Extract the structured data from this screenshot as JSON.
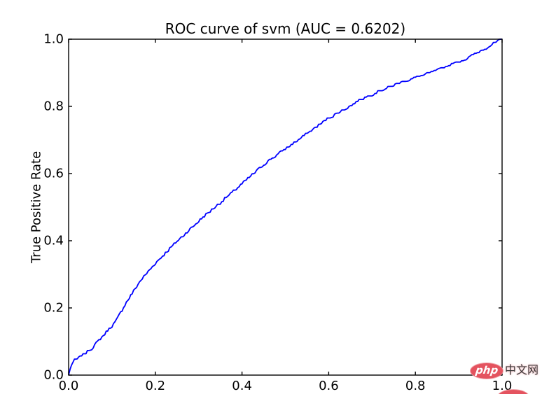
{
  "chart_data": {
    "type": "line",
    "title": "ROC curve of svm (AUC = 0.6202)",
    "xlabel": "",
    "ylabel": "True Positive Rate",
    "xlim": [
      0.0,
      1.0
    ],
    "ylim": [
      0.0,
      1.0
    ],
    "grid": false,
    "legend": "none",
    "x_tick_labels": [
      "0.0",
      "0.2",
      "0.4",
      "0.6",
      "0.8",
      "1.0"
    ],
    "y_tick_labels": [
      "0.0",
      "0.2",
      "0.4",
      "0.6",
      "0.8",
      "1.0"
    ],
    "x_tick_values": [
      0.0,
      0.2,
      0.4,
      0.6,
      0.8,
      1.0
    ],
    "y_tick_values": [
      0.0,
      0.2,
      0.4,
      0.6,
      0.8,
      1.0
    ],
    "series": [
      {
        "name": "ROC curve of svm",
        "auc": 0.6202,
        "color": "#0000ff",
        "points": [
          [
            0.0,
            0.0
          ],
          [
            0.006,
            0.03
          ],
          [
            0.012,
            0.042
          ],
          [
            0.03,
            0.056
          ],
          [
            0.05,
            0.075
          ],
          [
            0.076,
            0.112
          ],
          [
            0.108,
            0.158
          ],
          [
            0.13,
            0.21
          ],
          [
            0.165,
            0.28
          ],
          [
            0.2,
            0.333
          ],
          [
            0.25,
            0.398
          ],
          [
            0.31,
            0.47
          ],
          [
            0.37,
            0.535
          ],
          [
            0.456,
            0.633
          ],
          [
            0.53,
            0.7
          ],
          [
            0.598,
            0.763
          ],
          [
            0.682,
            0.825
          ],
          [
            0.76,
            0.868
          ],
          [
            0.843,
            0.903
          ],
          [
            0.919,
            0.942
          ],
          [
            0.96,
            0.972
          ],
          [
            1.0,
            1.0
          ]
        ]
      }
    ],
    "axis_color": "#000000",
    "background_color": "#ffffff"
  },
  "watermark": {
    "logo_text": "php",
    "site_text": "中文网",
    "ellipse_color": "#e4535f",
    "text_color": "#3a3a3a"
  }
}
